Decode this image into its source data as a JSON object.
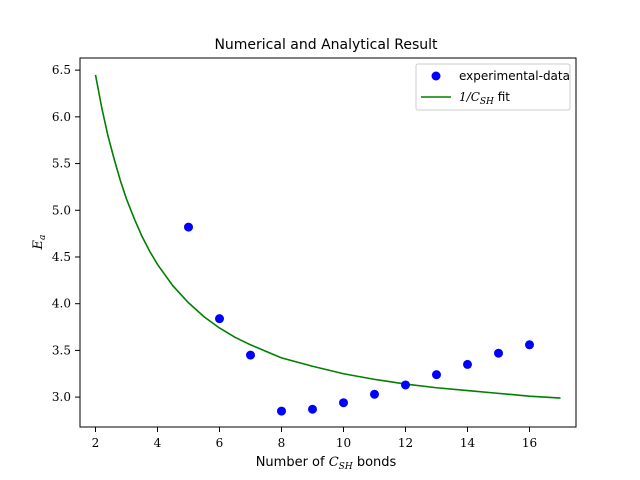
{
  "chart_data": {
    "type": "scatter",
    "title": "Numerical and Analytical Result",
    "xlabel": {
      "before": "Number of ",
      "math": "C",
      "sub": "SH",
      "after": " bonds"
    },
    "ylabel": {
      "math": "E",
      "sub": "a"
    },
    "xlim": [
      1.5,
      17.5
    ],
    "ylim": [
      2.68,
      6.63
    ],
    "x_ticks": [
      2,
      4,
      6,
      8,
      10,
      12,
      14,
      16
    ],
    "x_tick_labels": [
      "2",
      "4",
      "6",
      "8",
      "10",
      "12",
      "14",
      "16"
    ],
    "y_ticks": [
      3.0,
      3.5,
      4.0,
      4.5,
      5.0,
      5.5,
      6.0,
      6.5
    ],
    "y_tick_labels": [
      "3.0",
      "3.5",
      "4.0",
      "4.5",
      "5.0",
      "5.5",
      "6.0",
      "6.5"
    ],
    "grid": false,
    "legend_position": "top-right",
    "series": [
      {
        "name": "experimental-data",
        "kind": "scatter",
        "color": "#0000ff",
        "x": [
          5,
          6,
          7,
          8,
          9,
          10,
          11,
          12,
          13,
          14,
          15,
          16
        ],
        "y": [
          4.82,
          3.84,
          3.45,
          2.85,
          2.87,
          2.94,
          3.03,
          3.13,
          3.24,
          3.35,
          3.47,
          3.56
        ]
      },
      {
        "name_parts": {
          "prefix": "1/",
          "math": "C",
          "sub": "SH",
          "suffix": " fit"
        },
        "kind": "line",
        "color": "#008000",
        "x": [
          2,
          2.2,
          2.4,
          2.6,
          2.8,
          3,
          3.25,
          3.5,
          3.75,
          4,
          4.5,
          5,
          5.5,
          6,
          6.5,
          7,
          7.5,
          8,
          9,
          10,
          11,
          12,
          13,
          14,
          15,
          16,
          17
        ],
        "y": [
          6.45,
          6.1,
          5.8,
          5.55,
          5.32,
          5.12,
          4.91,
          4.72,
          4.56,
          4.42,
          4.19,
          4.01,
          3.86,
          3.74,
          3.64,
          3.56,
          3.49,
          3.42,
          3.33,
          3.25,
          3.19,
          3.14,
          3.1,
          3.07,
          3.04,
          3.01,
          2.99
        ]
      }
    ]
  }
}
